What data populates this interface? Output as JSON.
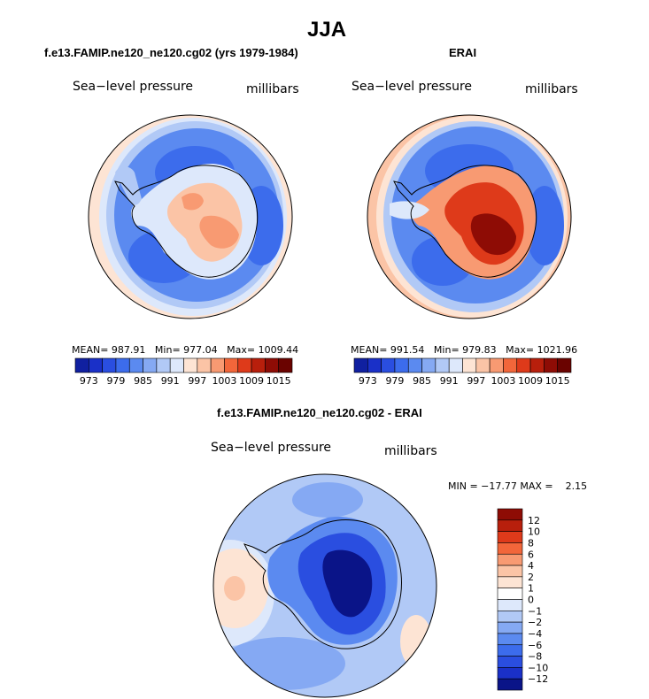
{
  "page_title": "JJA",
  "panels": [
    {
      "title": "f.e13.FAMIP.ne120_ne120.cg02 (yrs 1979-1984)",
      "left_label": "Sea−level pressure",
      "right_label": "millibars",
      "stats": {
        "mean_label": "MEAN=",
        "mean": "987.91",
        "min_label": "Min=",
        "min": "977.04",
        "max_label": "Max=",
        "max": "1009.44"
      }
    },
    {
      "title": "ERAI",
      "left_label": "Sea−level pressure",
      "right_label": "millibars",
      "stats": {
        "mean_label": "MEAN=",
        "mean": "991.54",
        "min_label": "Min=",
        "min": "979.83",
        "max_label": "Max=",
        "max": "1021.96"
      }
    },
    {
      "title": "f.e13.FAMIP.ne120_ne120.cg02 - ERAI",
      "left_label": "Sea−level pressure",
      "right_label": "millibars",
      "minmax_text": "MIN = −17.77 MAX =    2.15"
    }
  ],
  "chart_data": [
    {
      "type": "heatmap",
      "projection": "south-polar-stereographic",
      "title": "f.e13.FAMIP.ne120_ne120.cg02 (yrs 1979-1984)",
      "variable": "Sea-level pressure",
      "units": "millibars",
      "mean": 987.91,
      "min": 977.04,
      "max": 1009.44,
      "colorbar": {
        "orientation": "horizontal",
        "levels": [
          973,
          976,
          979,
          982,
          985,
          988,
          991,
          994,
          997,
          1000,
          1003,
          1006,
          1009,
          1012,
          1015
        ],
        "labeled_ticks": [
          "973",
          "979",
          "985",
          "991",
          "997",
          "1003",
          "1009",
          "1015"
        ],
        "colors": [
          "#1020a0",
          "#1a30c8",
          "#2a4ee0",
          "#3c6cec",
          "#5b8af0",
          "#85a9f3",
          "#b1c9f6",
          "#dde8fb",
          "#fde4d4",
          "#fbc4a6",
          "#f89a72",
          "#f2663a",
          "#de3a1a",
          "#b81f0c",
          "#8e0c05",
          "#6a0300"
        ]
      }
    },
    {
      "type": "heatmap",
      "projection": "south-polar-stereographic",
      "title": "ERAI",
      "variable": "Sea-level pressure",
      "units": "millibars",
      "mean": 991.54,
      "min": 979.83,
      "max": 1021.96,
      "colorbar": {
        "orientation": "horizontal",
        "levels": [
          973,
          976,
          979,
          982,
          985,
          988,
          991,
          994,
          997,
          1000,
          1003,
          1006,
          1009,
          1012,
          1015
        ],
        "labeled_ticks": [
          "973",
          "979",
          "985",
          "991",
          "997",
          "1003",
          "1009",
          "1015"
        ],
        "colors": [
          "#1020a0",
          "#1a30c8",
          "#2a4ee0",
          "#3c6cec",
          "#5b8af0",
          "#85a9f3",
          "#b1c9f6",
          "#dde8fb",
          "#fde4d4",
          "#fbc4a6",
          "#f89a72",
          "#f2663a",
          "#de3a1a",
          "#b81f0c",
          "#8e0c05",
          "#6a0300"
        ]
      }
    },
    {
      "type": "heatmap",
      "projection": "south-polar-stereographic",
      "title": "f.e13.FAMIP.ne120_ne120.cg02 - ERAI",
      "variable": "Sea-level pressure",
      "units": "millibars",
      "min": -17.77,
      "max": 2.15,
      "colorbar": {
        "orientation": "vertical",
        "levels": [
          12,
          10,
          8,
          6,
          4,
          2,
          1,
          0,
          -1,
          -2,
          -4,
          -6,
          -8,
          -10,
          -12
        ],
        "labeled_ticks": [
          "12",
          "10",
          "8",
          "6",
          "4",
          "2",
          "1",
          "0",
          "−1",
          "−2",
          "−4",
          "−6",
          "−8",
          "−10",
          "−12"
        ],
        "colors_top_to_bottom": [
          "#8e0c05",
          "#b81f0c",
          "#de3a1a",
          "#f2663a",
          "#f89a72",
          "#fbc4a6",
          "#fde4d4",
          "#ffffff",
          "#dde8fb",
          "#b1c9f6",
          "#85a9f3",
          "#5b8af0",
          "#3c6cec",
          "#2a4ee0",
          "#1a30c8",
          "#0a1488"
        ]
      }
    }
  ]
}
